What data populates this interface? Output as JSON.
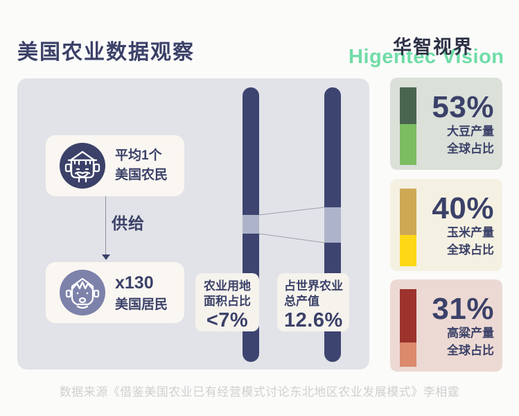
{
  "header": {
    "title": "美国农业数据观察",
    "brand_cn": "华智视界",
    "brand_en": "Higentec Vision"
  },
  "panel": {
    "farmer_card": {
      "line1": "平均1个",
      "line2": "美国农民"
    },
    "supply_label": "供给",
    "resident_card": {
      "line1": "x130",
      "line2": "美国居民"
    },
    "land_card": {
      "line1": "农业用地",
      "line2": "面积占比",
      "value": "<7%"
    },
    "output_card": {
      "line1": "占世界农业",
      "line2": "总产值",
      "value": "12.6%"
    }
  },
  "stats": [
    {
      "id": "soybean",
      "value": "53%",
      "percent": 53,
      "label_line1": "大豆产量",
      "label_line2": "全球占比",
      "card_color": "#dbe0d9",
      "bar_top_color": "#4a654f",
      "bar_bottom_color": "#7cbd61"
    },
    {
      "id": "corn",
      "value": "40%",
      "percent": 40,
      "label_line1": "玉米产量",
      "label_line2": "全球占比",
      "card_color": "#f5f1e2",
      "bar_top_color": "#cfa855",
      "bar_bottom_color": "#fed816"
    },
    {
      "id": "sorghum",
      "value": "31%",
      "percent": 31,
      "label_line1": "高粱产量",
      "label_line2": "全球占比",
      "card_color": "#edd9d4",
      "bar_top_color": "#9c332d",
      "bar_bottom_color": "#db8a6d"
    }
  ],
  "footer": {
    "source": "数据来源《借鉴美国农业已有经营模式讨论东北地区农业发展模式》李相霆"
  },
  "colors": {
    "page_bg": "#fbfbfa",
    "panel_bg": "#e2e3e8",
    "card_bg": "#faf7f2",
    "label_card_bg": "#f6f3ed",
    "navy": "#3b4168",
    "bar_navy": "#3d4470",
    "bar_highlight": "#adb3c9",
    "brand_green": "#6fdca6",
    "farmer_circle": "#3b4168",
    "resident_circle": "#7d82aa",
    "connector": "#9aa0ac",
    "source_text": "#d0d0d0"
  }
}
